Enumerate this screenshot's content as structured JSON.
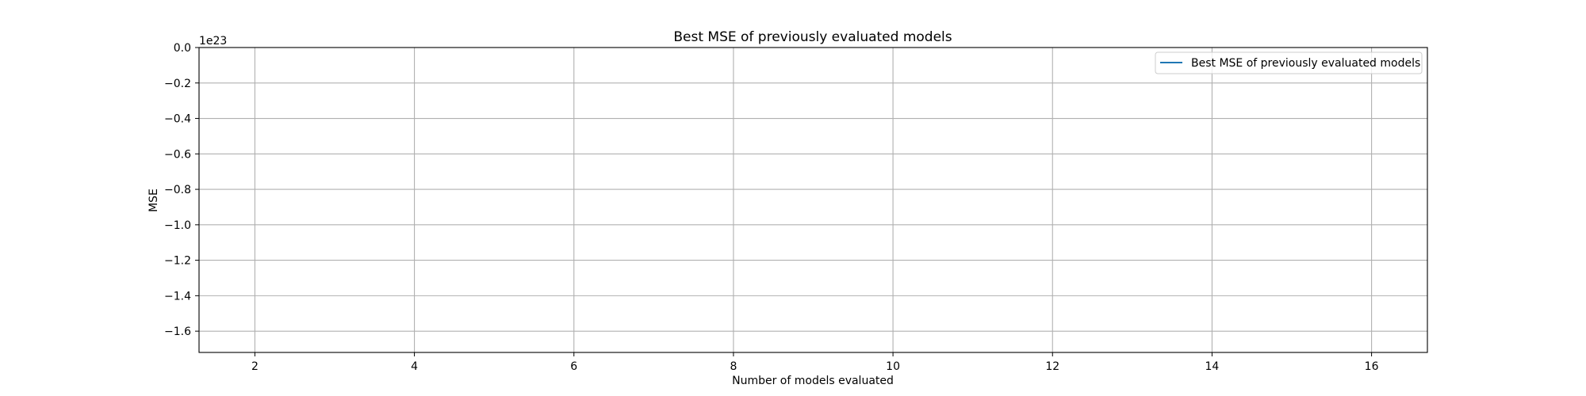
{
  "chart_data": {
    "type": "line",
    "title": "Best MSE of previously evaluated models",
    "xlabel": "Number of models evaluated",
    "ylabel": "MSE",
    "y_offset_text": "1e23",
    "xlim": [
      1.3,
      16.7
    ],
    "ylim": [
      -1.72,
      0.0
    ],
    "x_ticks": [
      2,
      4,
      6,
      8,
      10,
      12,
      14,
      16
    ],
    "x_tick_labels": [
      "2",
      "4",
      "6",
      "8",
      "10",
      "12",
      "14",
      "16"
    ],
    "y_ticks": [
      0.0,
      -0.2,
      -0.4,
      -0.6,
      -0.8,
      -1.0,
      -1.2,
      -1.4,
      -1.6
    ],
    "y_tick_labels": [
      "0.0",
      "−0.2",
      "−0.4",
      "−0.6",
      "−0.8",
      "−1.0",
      "−1.2",
      "−1.4",
      "−1.6"
    ],
    "grid": true,
    "legend_position": "top-right",
    "series": [
      {
        "name": "Best MSE of previously evaluated models",
        "color": "#1f77b4",
        "x": [],
        "y": []
      }
    ]
  }
}
